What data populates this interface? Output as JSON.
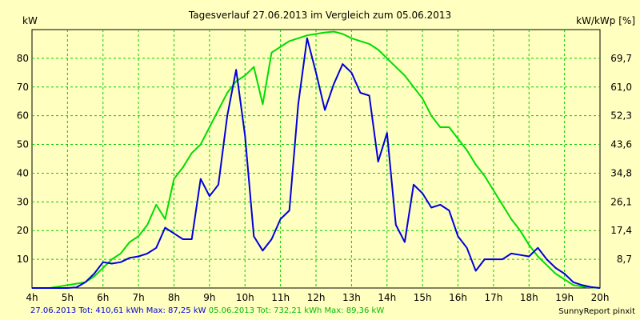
{
  "chart_data": {
    "type": "line",
    "title": "Tagesverlauf 27.06.2013 im Vergleich zum 05.06.2013",
    "ylabel_left": "kW",
    "ylabel_right": "kW/kWp [%]",
    "xlim": [
      4,
      20
    ],
    "ylim": [
      0,
      90
    ],
    "x_ticks": [
      "4h",
      "5h",
      "6h",
      "7h",
      "8h",
      "9h",
      "10h",
      "11h",
      "12h",
      "13h",
      "14h",
      "15h",
      "16h",
      "17h",
      "18h",
      "19h",
      "20h"
    ],
    "y_ticks": [
      10,
      20,
      30,
      40,
      50,
      60,
      70,
      80
    ],
    "y_right_ticks": [
      {
        "label": "8,7",
        "value": 10
      },
      {
        "label": "17,4",
        "value": 20
      },
      {
        "label": "26,1",
        "value": 30
      },
      {
        "label": "34,8",
        "value": 40
      },
      {
        "label": "43,6",
        "value": 50
      },
      {
        "label": "52,3",
        "value": 60
      },
      {
        "label": "61,0",
        "value": 70
      },
      {
        "label": "69,7",
        "value": 80
      }
    ],
    "grid": true,
    "series": [
      {
        "date": "27.06.2013",
        "color": "#0000dd",
        "points": [
          [
            4,
            0
          ],
          [
            4.5,
            0
          ],
          [
            5,
            0
          ],
          [
            5.25,
            0.2
          ],
          [
            5.5,
            2
          ],
          [
            5.75,
            5
          ],
          [
            6,
            9
          ],
          [
            6.25,
            8.5
          ],
          [
            6.5,
            9
          ],
          [
            6.75,
            10.5
          ],
          [
            7,
            11
          ],
          [
            7.25,
            12
          ],
          [
            7.5,
            14
          ],
          [
            7.75,
            21
          ],
          [
            8,
            19
          ],
          [
            8.25,
            17
          ],
          [
            8.5,
            17
          ],
          [
            8.75,
            38
          ],
          [
            9,
            32
          ],
          [
            9.25,
            36
          ],
          [
            9.5,
            60
          ],
          [
            9.75,
            76
          ],
          [
            10,
            53
          ],
          [
            10.25,
            18
          ],
          [
            10.5,
            13
          ],
          [
            10.75,
            17
          ],
          [
            11,
            24
          ],
          [
            11.25,
            27
          ],
          [
            11.5,
            64
          ],
          [
            11.75,
            87
          ],
          [
            12,
            75
          ],
          [
            12.25,
            62
          ],
          [
            12.5,
            71
          ],
          [
            12.75,
            78
          ],
          [
            13,
            75
          ],
          [
            13.25,
            68
          ],
          [
            13.5,
            67
          ],
          [
            13.75,
            44
          ],
          [
            14,
            54
          ],
          [
            14.25,
            22
          ],
          [
            14.5,
            16
          ],
          [
            14.75,
            36
          ],
          [
            15,
            33
          ],
          [
            15.25,
            28
          ],
          [
            15.5,
            29
          ],
          [
            15.75,
            27
          ],
          [
            16,
            18
          ],
          [
            16.25,
            14
          ],
          [
            16.5,
            6
          ],
          [
            16.75,
            10
          ],
          [
            17,
            10
          ],
          [
            17.25,
            10
          ],
          [
            17.5,
            12
          ],
          [
            17.75,
            11.5
          ],
          [
            18,
            11
          ],
          [
            18.25,
            14
          ],
          [
            18.5,
            10
          ],
          [
            18.75,
            7
          ],
          [
            19,
            5
          ],
          [
            19.25,
            2
          ],
          [
            19.5,
            1
          ],
          [
            19.75,
            0.3
          ],
          [
            20,
            0
          ]
        ],
        "total": "410,61",
        "max": "87,25"
      },
      {
        "date": "05.06.2013",
        "color": "#00dd00",
        "points": [
          [
            4,
            0
          ],
          [
            4.5,
            0
          ],
          [
            4.75,
            0.5
          ],
          [
            5,
            1
          ],
          [
            5.5,
            2
          ],
          [
            5.75,
            4
          ],
          [
            6,
            7
          ],
          [
            6.25,
            10
          ],
          [
            6.5,
            12
          ],
          [
            6.75,
            16
          ],
          [
            7,
            18
          ],
          [
            7.25,
            22
          ],
          [
            7.5,
            29
          ],
          [
            7.75,
            24
          ],
          [
            8,
            38
          ],
          [
            8.25,
            42
          ],
          [
            8.5,
            47
          ],
          [
            8.75,
            50
          ],
          [
            9,
            56
          ],
          [
            9.25,
            62
          ],
          [
            9.5,
            68
          ],
          [
            9.75,
            72
          ],
          [
            10,
            74
          ],
          [
            10.25,
            77
          ],
          [
            10.5,
            64
          ],
          [
            10.75,
            82
          ],
          [
            11,
            84
          ],
          [
            11.25,
            86
          ],
          [
            11.5,
            87
          ],
          [
            11.75,
            88
          ],
          [
            12,
            88.5
          ],
          [
            12.25,
            89
          ],
          [
            12.5,
            89.3
          ],
          [
            12.75,
            88.5
          ],
          [
            13,
            87
          ],
          [
            13.25,
            86
          ],
          [
            13.5,
            85
          ],
          [
            13.75,
            83
          ],
          [
            14,
            80
          ],
          [
            14.25,
            77
          ],
          [
            14.5,
            74
          ],
          [
            14.75,
            70
          ],
          [
            15,
            66
          ],
          [
            15.25,
            60
          ],
          [
            15.5,
            56
          ],
          [
            15.75,
            56
          ],
          [
            16,
            52
          ],
          [
            16.25,
            48
          ],
          [
            16.5,
            43
          ],
          [
            16.75,
            39
          ],
          [
            17,
            34
          ],
          [
            17.25,
            29
          ],
          [
            17.5,
            24
          ],
          [
            17.75,
            20
          ],
          [
            18,
            15
          ],
          [
            18.25,
            11
          ],
          [
            18.5,
            8
          ],
          [
            18.75,
            5
          ],
          [
            19,
            3
          ],
          [
            19.25,
            1
          ],
          [
            19.5,
            0.5
          ],
          [
            19.75,
            0.2
          ],
          [
            20,
            0
          ]
        ],
        "total": "732,21",
        "max": "89,36"
      }
    ]
  },
  "footer": {
    "s1_text": "27.06.2013 Tot: 410,61 kWh Max: 87,25 kW",
    "s2_text": "05.06.2013 Tot: 732,21 kWh Max: 89,36 kW",
    "brand": "SunnyReport pinxit"
  }
}
